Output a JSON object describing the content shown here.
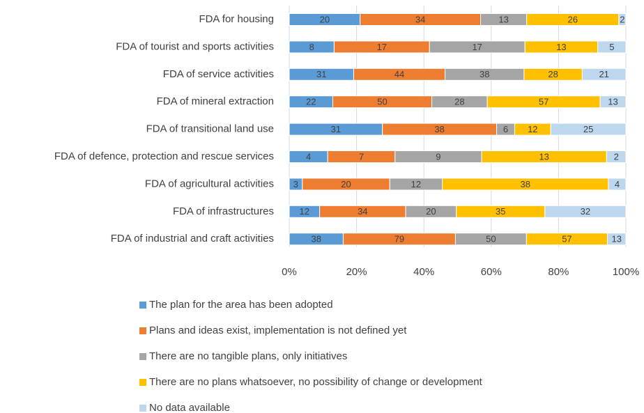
{
  "chart_data": {
    "type": "bar",
    "orientation": "horizontal",
    "stacked": "percent",
    "categories": [
      "FDA for housing",
      "FDA of tourist and sports activities",
      "FDA of service activities",
      "FDA of mineral extraction",
      "FDA of transitional land use",
      "FDA of defence, protection and rescue services",
      "FDA of agricultural activities",
      "FDA of infrastructures",
      "FDA of industrial and craft activities"
    ],
    "series": [
      {
        "name": "The plan for the area has been adopted",
        "color": "#5b9bd5",
        "values": [
          20,
          8,
          31,
          22,
          31,
          4,
          3,
          12,
          38
        ]
      },
      {
        "name": "Plans and ideas exist, implementation is not defined yet",
        "color": "#ed7d31",
        "values": [
          34,
          17,
          44,
          50,
          38,
          7,
          20,
          34,
          79
        ]
      },
      {
        "name": "There are no tangible plans, only initiatives",
        "color": "#a5a5a5",
        "values": [
          13,
          17,
          38,
          28,
          6,
          9,
          12,
          20,
          50
        ]
      },
      {
        "name": "There are no plans whatsoever, no possibility of change or development",
        "color": "#ffc000",
        "values": [
          26,
          13,
          28,
          57,
          12,
          13,
          38,
          35,
          57
        ]
      },
      {
        "name": "No data available",
        "color": "#bdd7ee",
        "values": [
          2,
          5,
          21,
          13,
          25,
          2,
          4,
          32,
          13
        ]
      }
    ],
    "xlim": [
      0,
      100
    ],
    "xticks": [
      {
        "value": 0,
        "label": "0%"
      },
      {
        "value": 20,
        "label": "20%"
      },
      {
        "value": 40,
        "label": "40%"
      },
      {
        "value": 60,
        "label": "60%"
      },
      {
        "value": 80,
        "label": "80%"
      },
      {
        "value": 100,
        "label": "100%"
      }
    ],
    "grid": true,
    "legend": "bottom"
  }
}
